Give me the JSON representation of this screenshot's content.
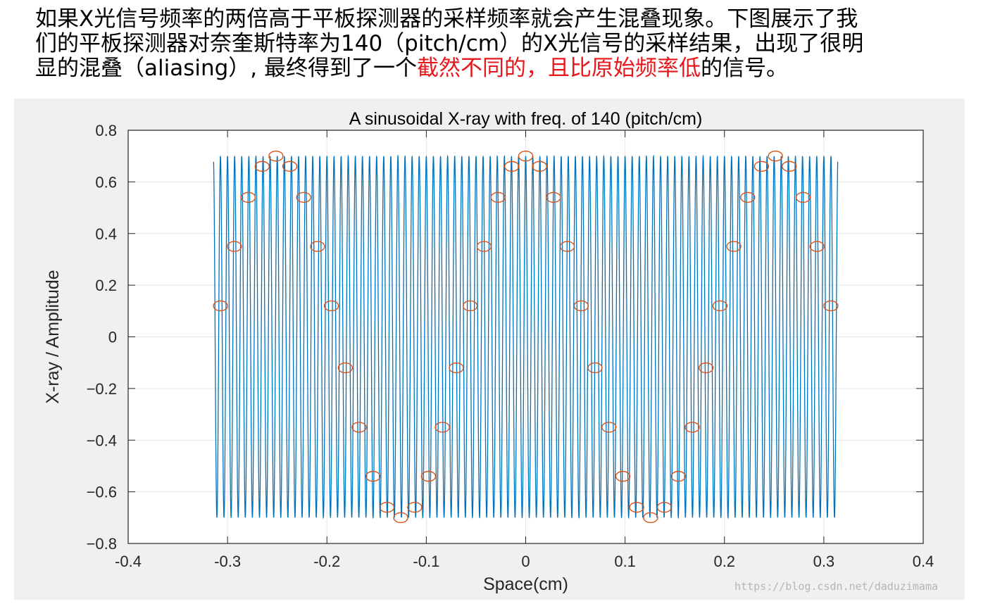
{
  "caption": {
    "lines": [
      [
        {
          "text": "如果X光信号频率的两倍高于平板探测器的采样频率就会产生混叠现象。下图展示了我",
          "red": false
        }
      ],
      [
        {
          "text": "们的平板探测器对奈奎斯特率为140（pitch/cm）的X光信号的采样结果，出现了很明",
          "red": false
        }
      ],
      [
        {
          "text": "显的混叠（aliasing）, 最终得到了一个",
          "red": false
        },
        {
          "text": "截然不同的，且比原始频率低",
          "red": true
        },
        {
          "text": "的信号。",
          "red": false
        }
      ]
    ],
    "highlight_color": "#e8171b"
  },
  "chart_data": {
    "type": "line",
    "title": "A sinusoidal X-ray with freq. of 140 (pitch/cm)",
    "xlabel": "Space(cm)",
    "ylabel": "X-ray / Amplitude",
    "xlim": [
      -0.4,
      0.4
    ],
    "ylim": [
      -0.8,
      0.8
    ],
    "xticks": [
      -0.4,
      -0.3,
      -0.2,
      -0.1,
      0,
      0.1,
      0.2,
      0.3,
      0.4
    ],
    "xtick_labels": [
      "-0.4",
      "-0.3",
      "-0.2",
      "-0.1",
      "0",
      "0.1",
      "0.2",
      "0.3",
      "0.4"
    ],
    "yticks": [
      -0.8,
      -0.6,
      -0.4,
      -0.2,
      0,
      0.2,
      0.4,
      0.6,
      0.8
    ],
    "ytick_labels": [
      "−0.8",
      "−0.6",
      "−0.4",
      "−0.2",
      "0",
      "0.2",
      "0.4",
      "0.6",
      "0.8"
    ],
    "grid": true,
    "series": [
      {
        "kind": "line",
        "color": "#0072bd",
        "amplitude": 0.7,
        "frequency": 140,
        "x_range": [
          -0.314,
          0.314
        ]
      },
      {
        "kind": "markers",
        "marker": "circle",
        "color": "#d95319",
        "x": [
          -0.3071,
          -0.2931,
          -0.2792,
          -0.2652,
          -0.2513,
          -0.2373,
          -0.2234,
          -0.2094,
          -0.1955,
          -0.1815,
          -0.1676,
          -0.1536,
          -0.1396,
          -0.1257,
          -0.1117,
          -0.0978,
          -0.0838,
          -0.0698,
          -0.0559,
          -0.0419,
          -0.0279,
          -0.014,
          0,
          0.014,
          0.0279,
          0.0419,
          0.0559,
          0.0698,
          0.0838,
          0.0978,
          0.1117,
          0.1257,
          0.1396,
          0.1536,
          0.1676,
          0.1815,
          0.1955,
          0.2094,
          0.2234,
          0.2373,
          0.2513,
          0.2652,
          0.2792,
          0.2931,
          0.3071
        ],
        "y": [
          0.12,
          0.35,
          0.54,
          0.66,
          0.7,
          0.66,
          0.54,
          0.35,
          0.12,
          -0.12,
          -0.35,
          -0.54,
          -0.66,
          -0.7,
          -0.66,
          -0.54,
          -0.35,
          -0.12,
          0.12,
          0.35,
          0.54,
          0.66,
          0.7,
          0.66,
          0.54,
          0.35,
          0.12,
          -0.12,
          -0.35,
          -0.54,
          -0.66,
          -0.7,
          -0.66,
          -0.54,
          -0.35,
          -0.12,
          0.12,
          0.35,
          0.54,
          0.66,
          0.7,
          0.66,
          0.54,
          0.35,
          0.12
        ]
      }
    ]
  },
  "watermark": "https://blog.csdn.net/daduzimama"
}
